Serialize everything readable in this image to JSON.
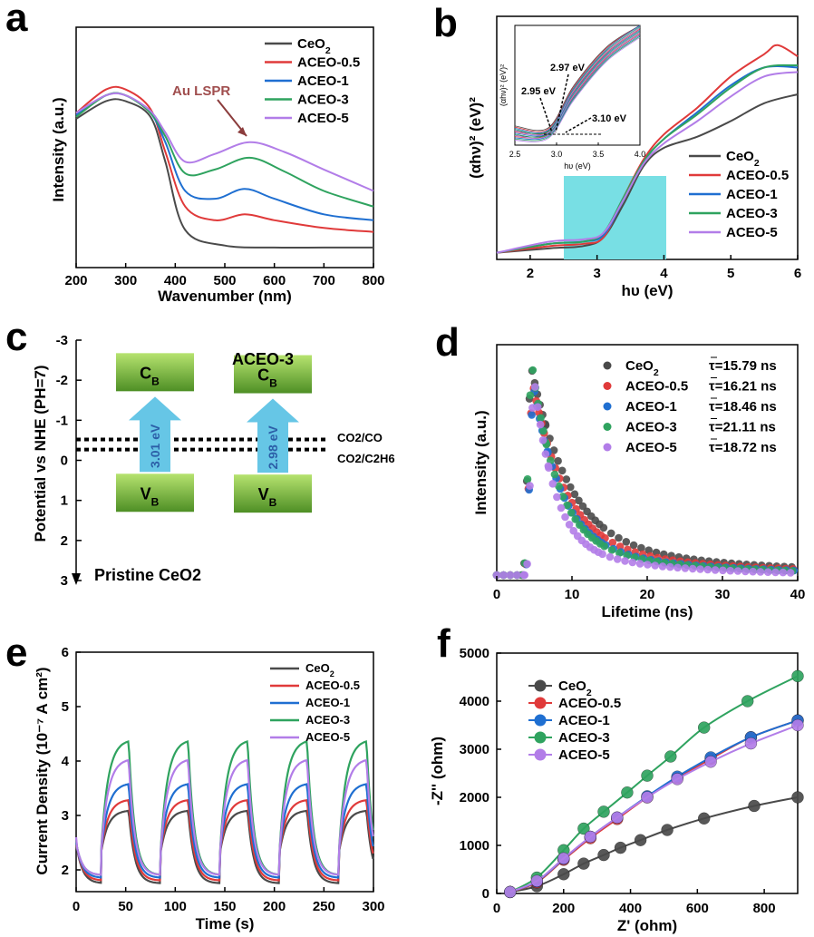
{
  "colors": {
    "CeO2": "#4a4a4a",
    "ACEO-0.5": "#e03a3a",
    "ACEO-1": "#1f6fd1",
    "ACEO-3": "#2fa35f",
    "ACEO-5": "#b27de8",
    "bar": "#7ec845",
    "arrow": "#66c6e6",
    "shade": "#78dfe4"
  },
  "series_names": [
    "CeO2",
    "ACEO-0.5",
    "ACEO-1",
    "ACEO-3",
    "ACEO-5"
  ],
  "chart_data": [
    {
      "panel": "a",
      "type": "line",
      "xlabel": "Wavenumber (nm)",
      "ylabel": "Intensity (a.u.)",
      "xlim": [
        200,
        800
      ],
      "ylim": [
        0,
        1
      ],
      "xticks": [
        "200",
        "300",
        "400",
        "500",
        "600",
        "700",
        "800"
      ],
      "annotation": "Au LSPR",
      "legend": [
        "CeO2",
        "ACEO-0.5",
        "ACEO-1",
        "ACEO-3",
        "ACEO-5"
      ],
      "series": [
        {
          "name": "CeO2",
          "x": [
            200,
            260,
            300,
            350,
            380,
            420,
            500,
            600,
            700,
            800
          ],
          "y": [
            0.67,
            0.76,
            0.76,
            0.68,
            0.45,
            0.1,
            0.02,
            0.01,
            0.01,
            0.01
          ]
        },
        {
          "name": "ACEO-0.5",
          "x": [
            200,
            260,
            300,
            350,
            380,
            420,
            480,
            540,
            600,
            700,
            800
          ],
          "y": [
            0.7,
            0.82,
            0.82,
            0.72,
            0.5,
            0.22,
            0.15,
            0.18,
            0.15,
            0.11,
            0.09
          ]
        },
        {
          "name": "ACEO-1",
          "x": [
            200,
            260,
            300,
            350,
            380,
            420,
            480,
            540,
            600,
            700,
            800
          ],
          "y": [
            0.69,
            0.79,
            0.79,
            0.7,
            0.55,
            0.3,
            0.26,
            0.31,
            0.26,
            0.18,
            0.15
          ]
        },
        {
          "name": "ACEO-3",
          "x": [
            200,
            260,
            300,
            350,
            380,
            420,
            480,
            550,
            620,
            700,
            800
          ],
          "y": [
            0.68,
            0.79,
            0.79,
            0.7,
            0.58,
            0.39,
            0.41,
            0.47,
            0.4,
            0.3,
            0.22
          ]
        },
        {
          "name": "ACEO-5",
          "x": [
            200,
            260,
            300,
            350,
            380,
            420,
            480,
            550,
            620,
            700,
            800
          ],
          "y": [
            0.7,
            0.79,
            0.79,
            0.71,
            0.6,
            0.45,
            0.49,
            0.55,
            0.5,
            0.41,
            0.3
          ]
        }
      ]
    },
    {
      "panel": "b",
      "type": "line",
      "xlabel": "hυ (eV)",
      "ylabel": "(αhν)² (eV)²",
      "xlim": [
        1.5,
        6
      ],
      "ylim": [
        0,
        1
      ],
      "xticks": [
        "2",
        "3",
        "4",
        "5",
        "6"
      ],
      "legend": [
        "CeO2",
        "ACEO-0.5",
        "ACEO-1",
        "ACEO-3",
        "ACEO-5"
      ],
      "shaded_region_x": [
        2.5,
        4.0
      ],
      "series": [
        {
          "name": "CeO2",
          "x": [
            1.5,
            2.3,
            2.8,
            3.1,
            3.4,
            3.7,
            4.0,
            4.5,
            5.0,
            5.5,
            6.0
          ],
          "y": [
            0.03,
            0.05,
            0.06,
            0.1,
            0.25,
            0.42,
            0.5,
            0.55,
            0.62,
            0.7,
            0.74
          ]
        },
        {
          "name": "ACEO-0.5",
          "x": [
            1.5,
            2.3,
            2.8,
            3.1,
            3.4,
            3.7,
            4.0,
            4.5,
            5.0,
            5.5,
            5.7,
            6.0
          ],
          "y": [
            0.03,
            0.06,
            0.07,
            0.1,
            0.28,
            0.45,
            0.56,
            0.68,
            0.82,
            0.92,
            0.96,
            0.91
          ]
        },
        {
          "name": "ACEO-1",
          "x": [
            1.5,
            2.3,
            2.8,
            3.1,
            3.4,
            3.7,
            4.0,
            4.5,
            5.0,
            5.5,
            6.0
          ],
          "y": [
            0.03,
            0.07,
            0.08,
            0.11,
            0.27,
            0.44,
            0.54,
            0.66,
            0.78,
            0.86,
            0.86
          ]
        },
        {
          "name": "ACEO-3",
          "x": [
            1.5,
            2.3,
            2.8,
            3.1,
            3.4,
            3.7,
            4.0,
            4.5,
            5.0,
            5.5,
            6.0
          ],
          "y": [
            0.03,
            0.07,
            0.08,
            0.12,
            0.28,
            0.44,
            0.54,
            0.65,
            0.77,
            0.86,
            0.87
          ]
        },
        {
          "name": "ACEO-5",
          "x": [
            1.5,
            2.3,
            2.8,
            3.1,
            3.4,
            3.7,
            4.0,
            4.5,
            5.0,
            5.5,
            6.0
          ],
          "y": [
            0.03,
            0.08,
            0.09,
            0.12,
            0.27,
            0.43,
            0.52,
            0.62,
            0.73,
            0.82,
            0.84
          ]
        }
      ],
      "inset": {
        "xlim": [
          2.5,
          4.0
        ],
        "xticks": [
          "2.5",
          "3.0",
          "3.5",
          "4.0"
        ],
        "xlabel": "hυ (eV)",
        "ylabel": "(αhν)² (eV)²",
        "annotations": [
          "2.97 eV",
          "2.95 eV",
          "3.10 eV"
        ]
      }
    },
    {
      "panel": "c",
      "type": "diagram",
      "ylabel": "Potential vs NHE (PH=7)",
      "ylim": [
        -3,
        3
      ],
      "yticks": [
        "-3",
        "-2",
        "-1",
        "0",
        "1",
        "2",
        "3"
      ],
      "materials": [
        {
          "name": "Pristine CeO2",
          "CB": -2.2,
          "VB": 0.81,
          "gap_label": "3.01 eV"
        },
        {
          "name": "ACEO-3",
          "CB": -2.15,
          "VB": 0.83,
          "gap_label": "2.98 eV"
        }
      ],
      "band_label_cb": "C",
      "band_label_vb": "V",
      "band_sub": "B",
      "reference_levels": [
        {
          "label": "CO2/CO",
          "value": -0.52
        },
        {
          "label": "CO2/C2H6",
          "value": -0.27
        }
      ]
    },
    {
      "panel": "d",
      "type": "scatter",
      "xlabel": "Lifetime (ns)",
      "ylabel": "Intensity (a.u.)",
      "xlim": [
        0,
        40
      ],
      "xticks": [
        "0",
        "10",
        "20",
        "30",
        "40"
      ],
      "legend": [
        "CeO2",
        "ACEO-0.5",
        "ACEO-1",
        "ACEO-3",
        "ACEO-5"
      ],
      "lifetimes": [
        "τ=15.79 ns",
        "τ=16.21 ns",
        "τ=18.46 ns",
        "τ=21.11 ns",
        "τ=18.72 ns"
      ],
      "peak_x": [
        4.5,
        4.7,
        4.8,
        4.6,
        4.9
      ],
      "decay_tau": [
        5.0,
        4.4,
        3.8,
        3.4,
        2.7
      ]
    },
    {
      "panel": "e",
      "type": "line",
      "xlabel": "Time (s)",
      "ylabel": "Current Density (10⁻⁷ A cm²)",
      "xlim": [
        0,
        300
      ],
      "ylim": [
        1.6,
        6
      ],
      "xticks": [
        "0",
        "50",
        "100",
        "150",
        "200",
        "250",
        "300"
      ],
      "yticks": [
        "2",
        "3",
        "4",
        "5",
        "6"
      ],
      "legend": [
        "CeO2",
        "ACEO-0.5",
        "ACEO-1",
        "ACEO-3",
        "ACEO-5"
      ],
      "light_on_times": [
        25,
        85,
        145,
        205,
        265
      ],
      "light_off_times": [
        53,
        113,
        173,
        233,
        293
      ],
      "series": [
        {
          "name": "CeO2",
          "on": 3.1,
          "off": 1.75
        },
        {
          "name": "ACEO-0.5",
          "on": 3.3,
          "off": 1.8
        },
        {
          "name": "ACEO-1",
          "on": 3.6,
          "off": 1.85
        },
        {
          "name": "ACEO-3",
          "on": 4.4,
          "off": 1.9
        },
        {
          "name": "ACEO-5",
          "on": 4.05,
          "off": 1.9
        }
      ]
    },
    {
      "panel": "f",
      "type": "scatter",
      "xlabel": "Z' (ohm)",
      "ylabel": "-Z'' (ohm)",
      "xlim": [
        0,
        900
      ],
      "ylim": [
        0,
        5000
      ],
      "xticks": [
        "0",
        "200",
        "400",
        "600",
        "800"
      ],
      "yticks": [
        "0",
        "1000",
        "2000",
        "3000",
        "4000",
        "5000"
      ],
      "legend": [
        "CeO2",
        "ACEO-0.5",
        "ACEO-1",
        "ACEO-3",
        "ACEO-5"
      ],
      "series": [
        {
          "name": "CeO2",
          "x": [
            40,
            120,
            200,
            260,
            320,
            370,
            430,
            510,
            620,
            770,
            900
          ],
          "y": [
            30,
            150,
            400,
            620,
            800,
            950,
            1110,
            1320,
            1560,
            1820,
            2000
          ]
        },
        {
          "name": "ACEO-0.5",
          "x": [
            40,
            120,
            200,
            280,
            360,
            450,
            540,
            640,
            760,
            900
          ],
          "y": [
            30,
            230,
            700,
            1150,
            1550,
            2000,
            2400,
            2800,
            3250,
            3600
          ]
        },
        {
          "name": "ACEO-1",
          "x": [
            40,
            120,
            200,
            280,
            360,
            450,
            540,
            640,
            760,
            900
          ],
          "y": [
            30,
            250,
            720,
            1180,
            1580,
            2020,
            2430,
            2830,
            3250,
            3600
          ]
        },
        {
          "name": "ACEO-3",
          "x": [
            40,
            120,
            200,
            260,
            320,
            390,
            450,
            520,
            620,
            750,
            900
          ],
          "y": [
            30,
            330,
            900,
            1350,
            1700,
            2100,
            2450,
            2850,
            3450,
            4000,
            4520
          ]
        },
        {
          "name": "ACEO-5",
          "x": [
            40,
            120,
            200,
            280,
            360,
            450,
            540,
            640,
            760,
            900
          ],
          "y": [
            30,
            260,
            730,
            1180,
            1580,
            2000,
            2380,
            2740,
            3120,
            3500
          ]
        }
      ]
    }
  ]
}
